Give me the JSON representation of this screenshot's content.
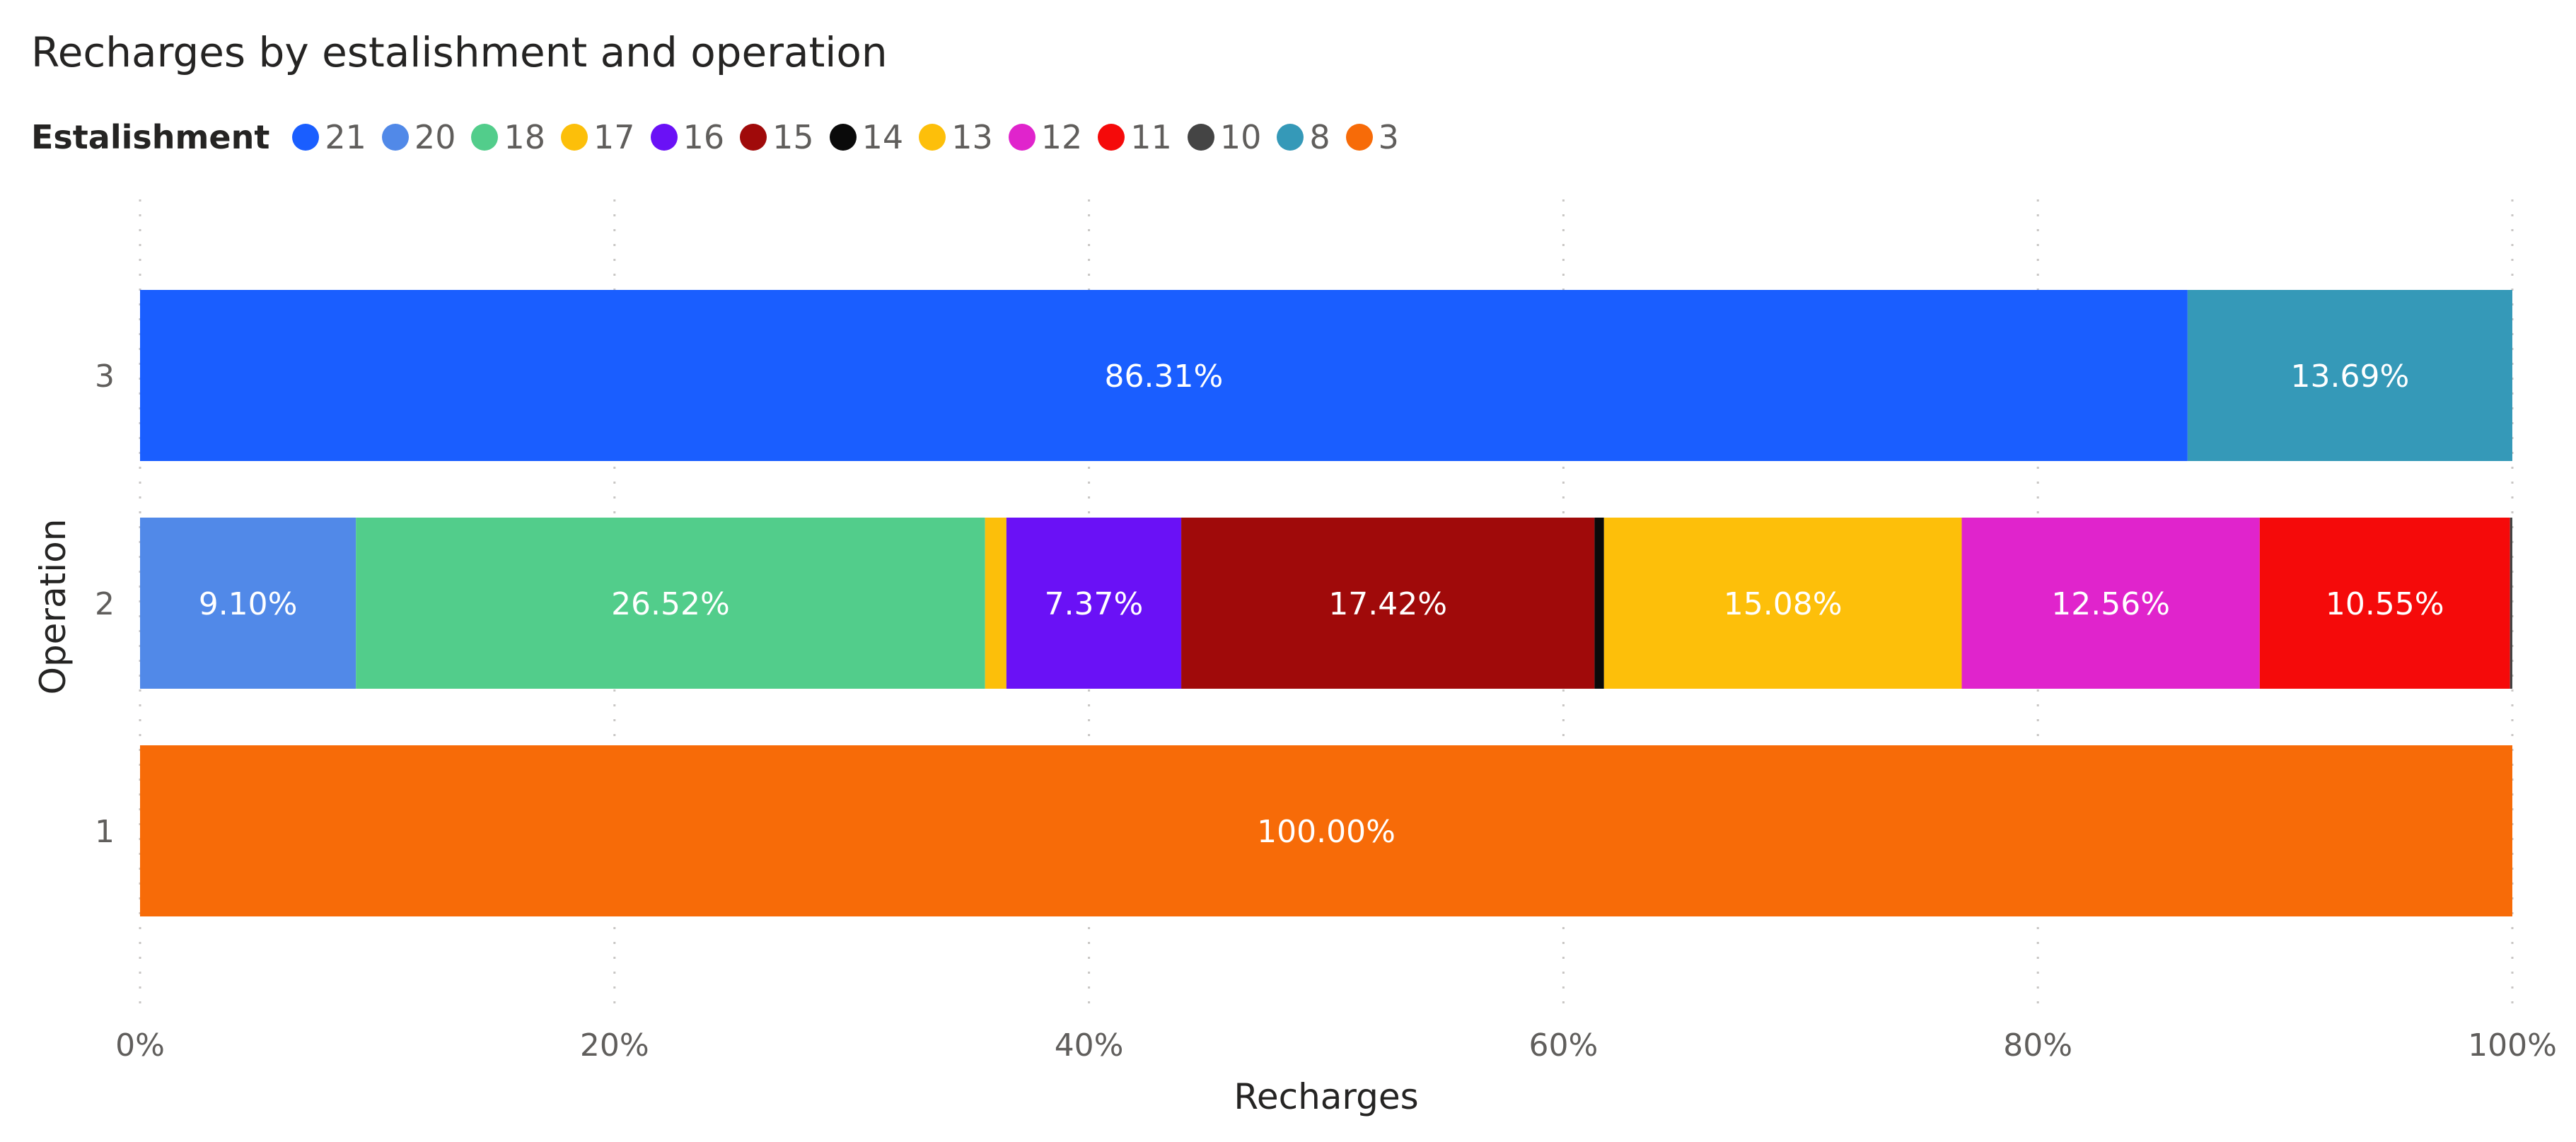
{
  "chart_data": {
    "type": "bar",
    "orientation": "horizontal",
    "stacking": "100%",
    "title": "Recharges by estalishment and operation",
    "xlabel": "Recharges",
    "ylabel": "Operation",
    "xlim": [
      0,
      100
    ],
    "x_ticks": [
      "0%",
      "20%",
      "40%",
      "60%",
      "80%",
      "100%"
    ],
    "categories": [
      "3",
      "2",
      "1"
    ],
    "grid": "vertical dotted",
    "legend_title": "Estalishment",
    "legend_position": "top-left",
    "series": [
      {
        "name": "21",
        "color": "#1a5eff",
        "values": [
          86.31,
          0,
          0
        ],
        "labels": [
          "86.31%",
          "",
          ""
        ]
      },
      {
        "name": "20",
        "color": "#5189e8",
        "values": [
          0,
          9.1,
          0
        ],
        "labels": [
          "",
          "9.10%",
          ""
        ]
      },
      {
        "name": "18",
        "color": "#52cd8b",
        "values": [
          0,
          26.52,
          0
        ],
        "labels": [
          "",
          "26.52%",
          ""
        ]
      },
      {
        "name": "17",
        "color": "#fcbf0a",
        "values": [
          0,
          0.9,
          0
        ],
        "labels": [
          "",
          "",
          ""
        ]
      },
      {
        "name": "16",
        "color": "#6a11f6",
        "values": [
          0,
          7.37,
          0
        ],
        "labels": [
          "",
          "7.37%",
          ""
        ]
      },
      {
        "name": "15",
        "color": "#a00a0a",
        "values": [
          0,
          17.42,
          0
        ],
        "labels": [
          "",
          "17.42%",
          ""
        ]
      },
      {
        "name": "14",
        "color": "#0a0a0a",
        "values": [
          0,
          0.4,
          0
        ],
        "labels": [
          "",
          "",
          ""
        ]
      },
      {
        "name": "13",
        "color": "#fdbf0a",
        "values": [
          0,
          15.08,
          0
        ],
        "labels": [
          "",
          "15.08%",
          ""
        ]
      },
      {
        "name": "12",
        "color": "#e024cc",
        "values": [
          0,
          12.56,
          0
        ],
        "labels": [
          "",
          "12.56%",
          ""
        ]
      },
      {
        "name": "11",
        "color": "#f50a0a",
        "values": [
          0,
          10.55,
          0
        ],
        "labels": [
          "",
          "10.55%",
          ""
        ]
      },
      {
        "name": "10",
        "color": "#444444",
        "values": [
          0,
          0.1,
          0
        ],
        "labels": [
          "",
          "",
          ""
        ]
      },
      {
        "name": "8",
        "color": "#3599b8",
        "values": [
          13.69,
          0,
          0
        ],
        "labels": [
          "13.69%",
          "",
          ""
        ]
      },
      {
        "name": "3",
        "color": "#f76b08",
        "values": [
          0,
          0,
          100.0
        ],
        "labels": [
          "",
          "",
          "100.00%"
        ]
      }
    ]
  }
}
